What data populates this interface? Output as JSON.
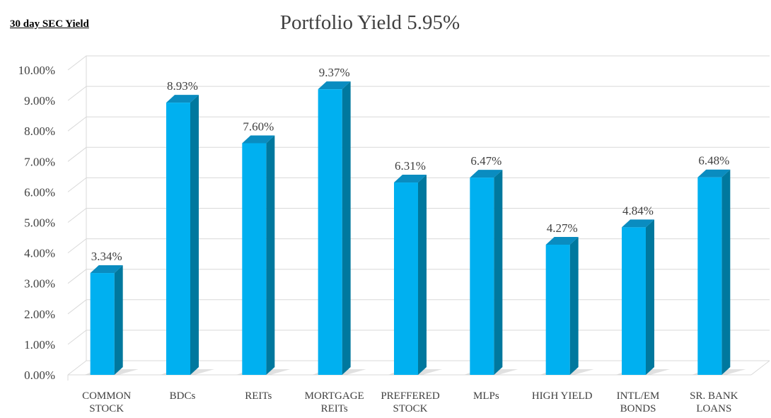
{
  "header": {
    "corner_label": "30 day SEC Yield",
    "title": "Portfolio Yield 5.95%"
  },
  "colors": {
    "bar_front": "#00b0f0",
    "bar_side": "#00789e",
    "bar_top": "#0a8cc0",
    "grid": "#d9d9d9",
    "text": "#404040"
  },
  "chart_data": {
    "type": "bar",
    "title": "Portfolio Yield 5.95%",
    "categories": [
      [
        "COMMON",
        "STOCK"
      ],
      [
        "BDCs"
      ],
      [
        "REITs"
      ],
      [
        "MORTGAGE",
        "REITs"
      ],
      [
        "PREFFERED",
        "STOCK"
      ],
      [
        "MLPs"
      ],
      [
        "HIGH YIELD"
      ],
      [
        "INTL/EM",
        "BONDS"
      ],
      [
        "SR. BANK",
        "LOANS"
      ]
    ],
    "values": [
      3.34,
      8.93,
      7.6,
      9.37,
      6.31,
      6.47,
      4.27,
      4.84,
      6.48
    ],
    "data_labels": [
      "3.34%",
      "8.93%",
      "7.60%",
      "9.37%",
      "6.31%",
      "6.47%",
      "4.27%",
      "4.84%",
      "6.48%"
    ],
    "ylim": [
      0,
      10
    ],
    "y_ticks": [
      "0.00%",
      "1.00%",
      "2.00%",
      "3.00%",
      "4.00%",
      "5.00%",
      "6.00%",
      "7.00%",
      "8.00%",
      "9.00%",
      "10.00%"
    ],
    "grid": true,
    "legend": "none"
  }
}
